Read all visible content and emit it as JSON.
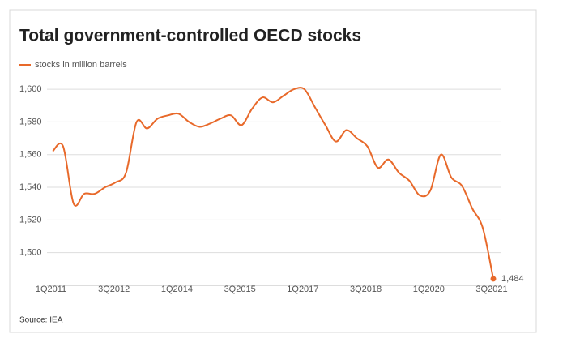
{
  "chart_data": {
    "type": "line",
    "title": "Total government-controlled OECD stocks",
    "source": "Source: IEA",
    "categories": [
      "1Q2011",
      null,
      null,
      null,
      null,
      null,
      "3Q2012",
      null,
      null,
      null,
      null,
      null,
      "1Q2014",
      null,
      null,
      null,
      null,
      null,
      "3Q2015",
      null,
      null,
      null,
      null,
      null,
      "1Q2017",
      null,
      null,
      null,
      null,
      null,
      "3Q2018",
      null,
      null,
      null,
      null,
      null,
      "1Q2020",
      null,
      null,
      null,
      null,
      null,
      "3Q2021"
    ],
    "series": [
      {
        "name": "stocks in million barrels",
        "color": "#e8692a",
        "values": [
          1562,
          1565,
          1530,
          1536,
          1536,
          1540,
          1543,
          1549,
          1580,
          1576,
          1582,
          1584,
          1585,
          1580,
          1577,
          1579,
          1582,
          1584,
          1578,
          1588,
          1595,
          1592,
          1596,
          1600,
          1600,
          1589,
          1578,
          1568,
          1575,
          1570,
          1565,
          1552,
          1557,
          1549,
          1544,
          1535,
          1538,
          1560,
          1546,
          1541,
          1527,
          1515,
          1484
        ],
        "value_labels": [
          null,
          null,
          null,
          null,
          null,
          null,
          null,
          null,
          null,
          null,
          null,
          null,
          null,
          null,
          null,
          null,
          null,
          null,
          null,
          null,
          null,
          null,
          null,
          null,
          null,
          null,
          null,
          null,
          null,
          null,
          null,
          null,
          null,
          null,
          null,
          null,
          null,
          null,
          null,
          null,
          null,
          null,
          "1,484"
        ]
      }
    ],
    "ylim": [
      1480,
      1605
    ],
    "yticks": [
      {
        "value": 1500,
        "label": "1,500"
      },
      {
        "value": 1520,
        "label": "1,520"
      },
      {
        "value": 1540,
        "label": "1,540"
      },
      {
        "value": 1560,
        "label": "1,560"
      },
      {
        "value": 1580,
        "label": "1,580"
      },
      {
        "value": 1600,
        "label": "1,600"
      }
    ],
    "grid": true
  }
}
